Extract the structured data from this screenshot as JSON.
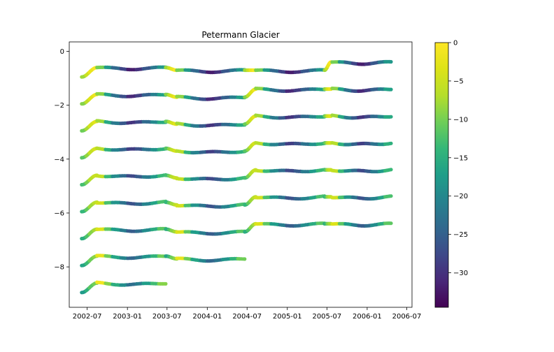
{
  "chart_data": {
    "type": "scatter",
    "title": "Petermann Glacier",
    "xlabel": "",
    "ylabel": "",
    "x_ticks": [
      "2002-07",
      "2003-01",
      "2003-07",
      "2004-01",
      "2004-07",
      "2005-01",
      "2005-07",
      "2006-01",
      "2006-07"
    ],
    "x_range": [
      "2002-04-10",
      "2006-07-25"
    ],
    "y_ticks": [
      0,
      -2,
      -4,
      -6,
      -8
    ],
    "ylim": [
      -9.5,
      0.35
    ],
    "grid": false,
    "colorbar": {
      "colormap": "viridis",
      "range": [
        -34.5,
        0
      ],
      "ticks": [
        0,
        -5,
        -10,
        -15,
        -20,
        -25,
        -30
      ]
    },
    "series": [
      {
        "segments": [
          {
            "years": [
              [
                "2002-06-06",
                "2002-08-20"
              ]
            ],
            "color_values": [
              -8,
              -5,
              -3,
              -1
            ]
          },
          {
            "years": [
              [
                "2002-08-20",
                "2003-06-25"
              ]
            ],
            "color_values": [
              -2,
              -8,
              -14,
              -20,
              -26,
              -32,
              -34,
              -30,
              -24
            ]
          },
          {
            "years": [
              [
                "2003-06-25",
                "2003-07-05"
              ]
            ],
            "color_values": [
              -3,
              -1
            ]
          }
        ],
        "offset": 0
      },
      {
        "segments": [
          {
            "years": [
              [
                "2003-07-30",
                "2004-06-15"
              ]
            ],
            "color_values": [
              -1,
              -22,
              -28,
              -32,
              -34,
              -30,
              -26,
              -18
            ]
          },
          {
            "years": [
              [
                "2004-06-20",
                "2004-07-10"
              ]
            ],
            "color_values": [
              -4,
              -2
            ]
          }
        ],
        "offset": -0.4
      },
      {
        "segments": [
          {
            "years": [
              [
                "2004-07-20",
                "2005-06-20"
              ]
            ],
            "color_values": [
              -2,
              -0.5,
              -20,
              -24,
              -28,
              -30,
              -24,
              -20
            ]
          },
          {
            "years": [
              [
                "2005-06-20",
                "2005-07-05"
              ]
            ],
            "color_values": [
              -2,
              -1
            ]
          }
        ],
        "offset": -0.3
      },
      {
        "segments": [
          {
            "years": [
              [
                "2005-07-25",
                "2006-04-20"
              ]
            ],
            "color_values": [
              -6,
              -22,
              -26,
              -30,
              -34,
              -32,
              -28,
              -26,
              -24
            ]
          }
        ],
        "offset": -0.15
      }
    ],
    "tracks": [
      {
        "start": -0.95,
        "levels": [
          -0.6,
          -0.7,
          -0.7,
          -0.4,
          -0.4,
          -0.3,
          -0.28,
          -0.15,
          -0.12
        ]
      },
      {
        "start": -1.95,
        "levels": [
          -1.6,
          -1.7,
          -1.4,
          -1.4,
          -1.4,
          -1.3,
          -1.3,
          -1.15,
          -1.12
        ]
      },
      {
        "start": -2.95,
        "levels": [
          -2.6,
          -2.7,
          -2.4,
          -2.4,
          -2.4,
          -2.3,
          -2.3,
          -2.15,
          -2.13
        ]
      },
      {
        "start": -3.95,
        "levels": [
          -3.6,
          -3.7,
          -3.4,
          -3.4,
          -3.4,
          -3.3,
          -3.3,
          -3.15,
          -3.13
        ]
      },
      {
        "start": -4.95,
        "levels": [
          -4.6,
          -4.7,
          -4.4,
          -4.4,
          -4.4,
          -4.3,
          -4.3,
          -4.15,
          -4.13
        ]
      },
      {
        "start": -5.95,
        "levels": [
          -5.6,
          -5.7,
          -5.4,
          -5.4,
          -5.4,
          -5.3,
          -5.3
        ]
      },
      {
        "start": -6.95,
        "levels": [
          -6.6,
          -6.7,
          -6.4,
          -6.4,
          -6.4
        ]
      },
      {
        "start": -7.95,
        "levels": [
          -7.6,
          -7.7
        ]
      },
      {
        "start": -8.95,
        "levels": [
          -8.6
        ]
      }
    ]
  }
}
